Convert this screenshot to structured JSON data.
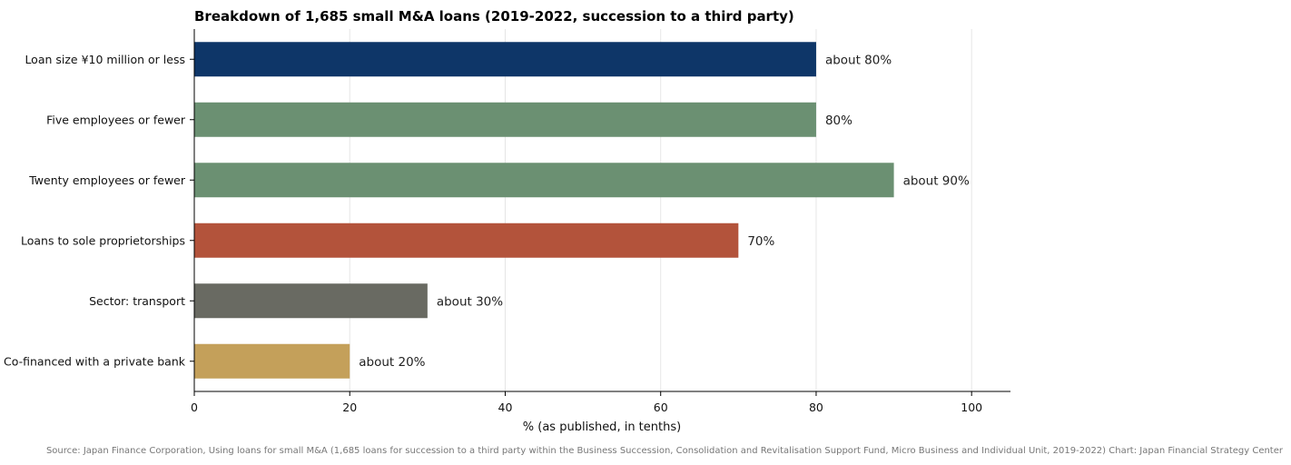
{
  "chart_data": {
    "type": "bar",
    "orientation": "horizontal",
    "title": "Breakdown of 1,685 small M&A loans (2019-2022, succession to a third party)",
    "xlabel": "% (as published, in tenths)",
    "ylabel": "",
    "xlim": [
      0,
      105
    ],
    "xticks": [
      0,
      20,
      40,
      60,
      80,
      100
    ],
    "grid": "vertical",
    "categories": [
      "Loan size ¥10 million or less",
      "Five employees or fewer",
      "Twenty employees or fewer",
      "Loans to sole proprietorships",
      "Sector: transport",
      "Co-financed with a private bank"
    ],
    "values": [
      80,
      80,
      90,
      70,
      30,
      20
    ],
    "data_labels": [
      "about 80%",
      "80%",
      "about 90%",
      "70%",
      "about 30%",
      "about 20%"
    ],
    "colors": [
      "#0e3668",
      "#6b9072",
      "#6b9072",
      "#b3533b",
      "#696a62",
      "#c4a05a"
    ]
  },
  "source": "Source: Japan Finance Corporation, Using loans for small M&A (1,685 loans for succession to a third party within the Business Succession, Consolidation and Revitalisation Support Fund, Micro Business and Individual Unit, 2019-2022)   Chart: Japan Financial Strategy Center"
}
